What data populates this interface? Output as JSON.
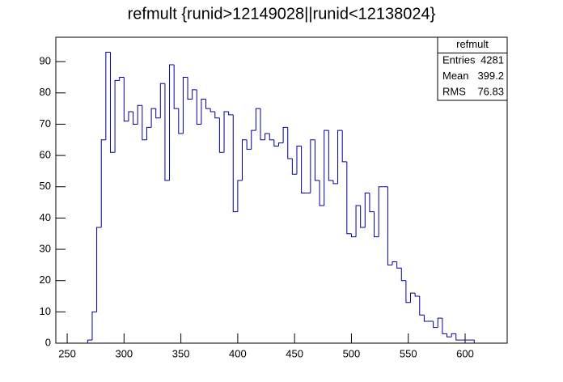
{
  "chart_data": {
    "type": "histogram",
    "title": "refmult {runid>12149028||runid<12138024}",
    "bins": [
      268,
      272,
      276,
      280,
      284,
      288,
      292,
      296,
      300,
      304,
      308,
      312,
      316,
      320,
      324,
      328,
      332,
      336,
      340,
      344,
      348,
      352,
      356,
      360,
      364,
      368,
      372,
      376,
      380,
      384,
      388,
      392,
      396,
      400,
      404,
      408,
      412,
      416,
      420,
      424,
      428,
      432,
      436,
      440,
      444,
      448,
      452,
      456,
      460,
      464,
      468,
      472,
      476,
      480,
      484,
      488,
      492,
      496,
      500,
      504,
      508,
      512,
      516,
      520,
      524,
      528,
      532,
      536,
      540,
      544,
      548,
      552,
      556,
      560,
      564,
      568,
      572,
      576,
      580,
      584,
      588,
      592,
      596,
      600,
      604,
      608
    ],
    "values": [
      1,
      10,
      37,
      65,
      93,
      61,
      84,
      85,
      71,
      74,
      70,
      76,
      65,
      69,
      75,
      72,
      83,
      52,
      89,
      75,
      67,
      85,
      78,
      81,
      70,
      78,
      75,
      74,
      72,
      61,
      74,
      73,
      42,
      52,
      65,
      62,
      68,
      75,
      65,
      67,
      65,
      63,
      64,
      69,
      59,
      54,
      63,
      48,
      48,
      65,
      52,
      44,
      68,
      52,
      51,
      68,
      58,
      35,
      34,
      44,
      37,
      48,
      42,
      34,
      50,
      50,
      25,
      26,
      24,
      20,
      13,
      16,
      15,
      9,
      7,
      7,
      5,
      8,
      3,
      2,
      3,
      1,
      1,
      1,
      1
    ],
    "color": "#000099",
    "xlim": [
      240,
      637
    ],
    "ylim": [
      0,
      97.8
    ],
    "xticks": [
      250,
      300,
      350,
      400,
      450,
      500,
      550,
      600
    ],
    "yticks": [
      0,
      10,
      20,
      30,
      40,
      50,
      60,
      70,
      80,
      90
    ],
    "stats": {
      "title": "refmult",
      "rows": [
        [
          "Entries",
          4281
        ],
        [
          "Mean",
          399.2
        ],
        [
          "RMS",
          76.83
        ]
      ]
    }
  }
}
